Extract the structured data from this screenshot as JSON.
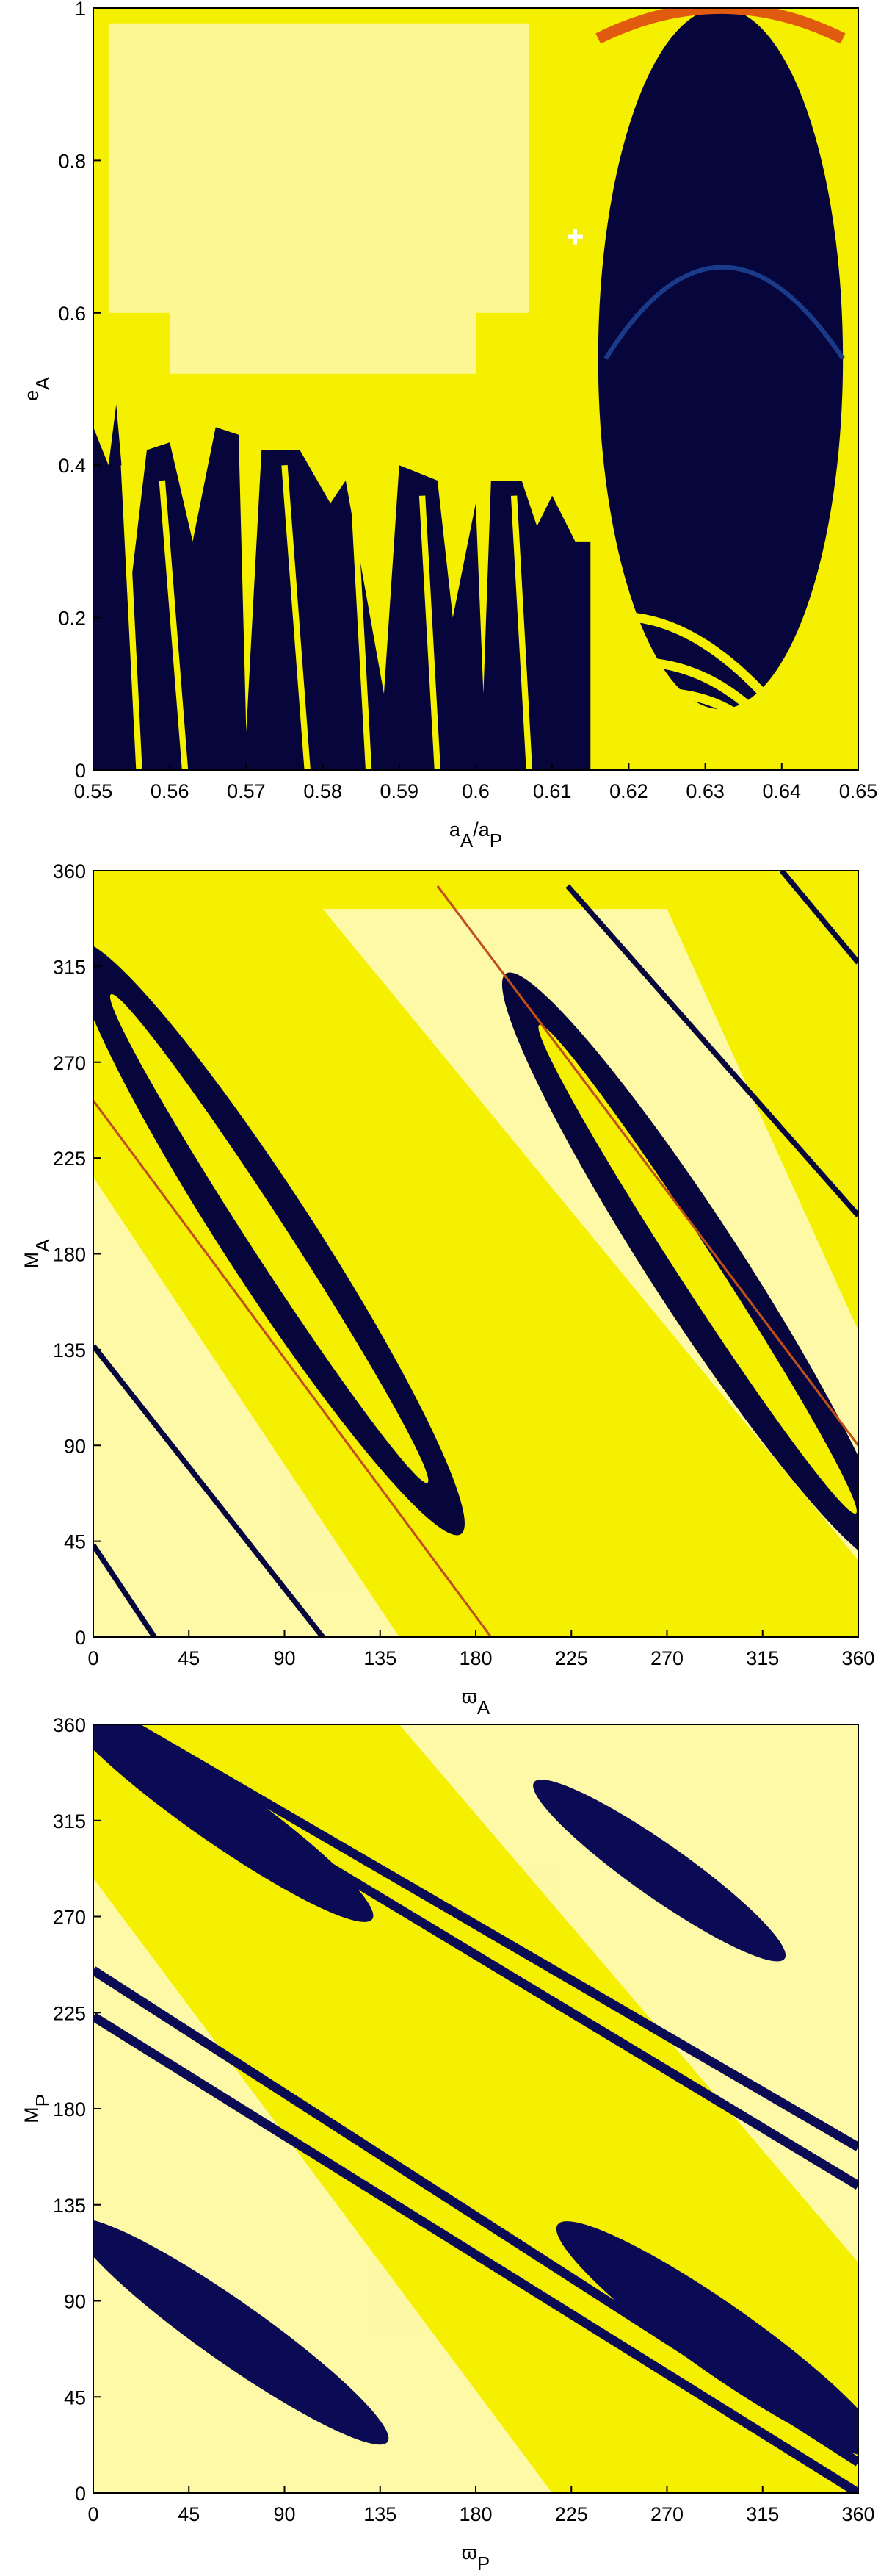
{
  "chart_data": [
    {
      "type": "map",
      "xlabel": [
        {
          "text": "a"
        },
        {
          "text": "A",
          "sub": true
        },
        {
          "text": "/a"
        },
        {
          "text": "P",
          "sub": true
        }
      ],
      "ylabel": [
        {
          "text": "e"
        },
        {
          "text": "A",
          "sub": true
        }
      ],
      "xlim": [
        0.55,
        0.65
      ],
      "xticks": [
        0.55,
        0.56,
        0.57,
        0.58,
        0.59,
        0.6,
        0.61,
        0.62,
        0.63,
        0.64,
        0.65
      ],
      "ylim": [
        0,
        1
      ],
      "yticks": [
        0,
        0.2,
        0.4,
        0.6,
        0.8,
        1
      ]
    },
    {
      "type": "map",
      "xlabel": [
        {
          "text": "ϖ"
        },
        {
          "text": "A",
          "sub": true
        }
      ],
      "ylabel": [
        {
          "text": "M"
        },
        {
          "text": "A",
          "sub": true
        }
      ],
      "xlim": [
        0,
        360
      ],
      "xticks": [
        0,
        45,
        90,
        135,
        180,
        225,
        270,
        315,
        360
      ],
      "ylim": [
        0,
        360
      ],
      "yticks": [
        0,
        45,
        90,
        135,
        180,
        225,
        270,
        315,
        360
      ]
    },
    {
      "type": "map",
      "xlabel": [
        {
          "text": "ϖ"
        },
        {
          "text": "P",
          "sub": true
        }
      ],
      "ylabel": [
        {
          "text": "M"
        },
        {
          "text": "P",
          "sub": true
        }
      ],
      "xlim": [
        0,
        360
      ],
      "xticks": [
        0,
        45,
        90,
        135,
        180,
        225,
        270,
        315,
        360
      ],
      "ylim": [
        0,
        360
      ],
      "yticks": [
        0,
        45,
        90,
        135,
        180,
        225,
        270,
        315,
        360
      ]
    }
  ]
}
